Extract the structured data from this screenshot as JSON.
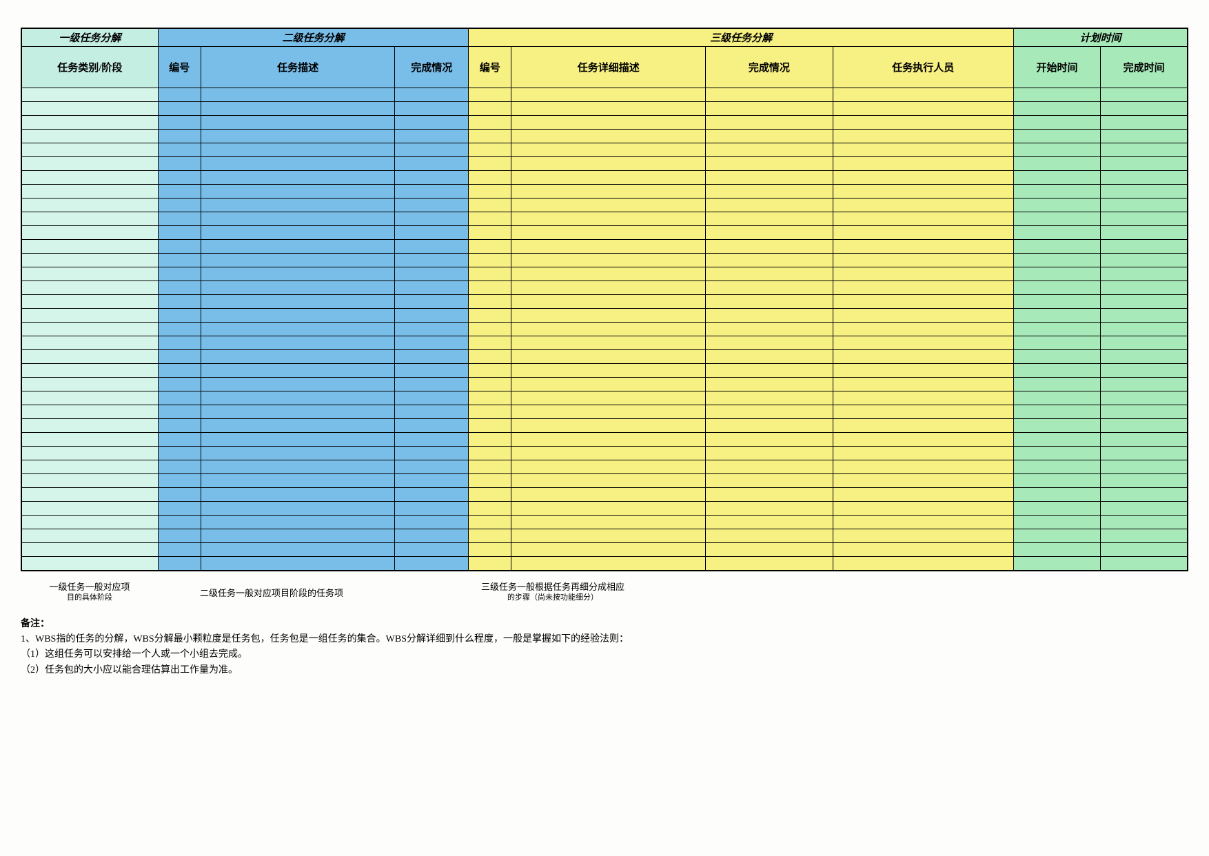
{
  "table": {
    "colors": {
      "level1_header_bg": "#c5eee3",
      "level1_cell_bg": "#d5f5ea",
      "level2_header_bg": "#79bde9",
      "level2_cell_bg": "#79bde9",
      "level3_header_bg": "#f7f083",
      "level3_cell_bg": "#f7f083",
      "time_header_bg": "#a7e9b8",
      "time_cell_bg": "#a7e9b8",
      "border_color": "#000000",
      "background": "#fdfdfb"
    },
    "top_headers": {
      "level1": "一级任务分解",
      "level2": "二级任务分解",
      "level3": "三级任务分解",
      "time": "计划时间"
    },
    "sub_headers": {
      "level1_col1": "任务类别/阶段",
      "level2_col1": "编号",
      "level2_col2": "任务描述",
      "level2_col3": "完成情况",
      "level3_col1": "编号",
      "level3_col2": "任务详细描述",
      "level3_col3": "完成情况",
      "level3_col4": "任务执行人员",
      "time_col1": "开始时间",
      "time_col2": "完成时间"
    },
    "column_widths_pct": [
      10.2,
      3.2,
      14.5,
      5.5,
      3.2,
      14.5,
      9.5,
      13.5,
      6.5,
      6.5
    ],
    "data_row_count": 35
  },
  "footer_notes": {
    "note1_line1": "一级任务一般对应项",
    "note1_line2": "目的具体阶段",
    "note2": "二级任务一般对应项目阶段的任务项",
    "note3_line1": "三级任务一般根据任务再细分成相应",
    "note3_line2": "的步骤（尚未按功能细分）"
  },
  "remarks": {
    "title": "备注：",
    "line1": "1、WBS指的任务的分解，WBS分解最小颗粒度是任务包，任务包是一组任务的集合。WBS分解详细到什么程度，一般是掌握如下的经验法则：",
    "line2": "（1）这组任务可以安排给一个人或一个小组去完成。",
    "line3": "（2）任务包的大小应以能合理估算出工作量为准。"
  }
}
